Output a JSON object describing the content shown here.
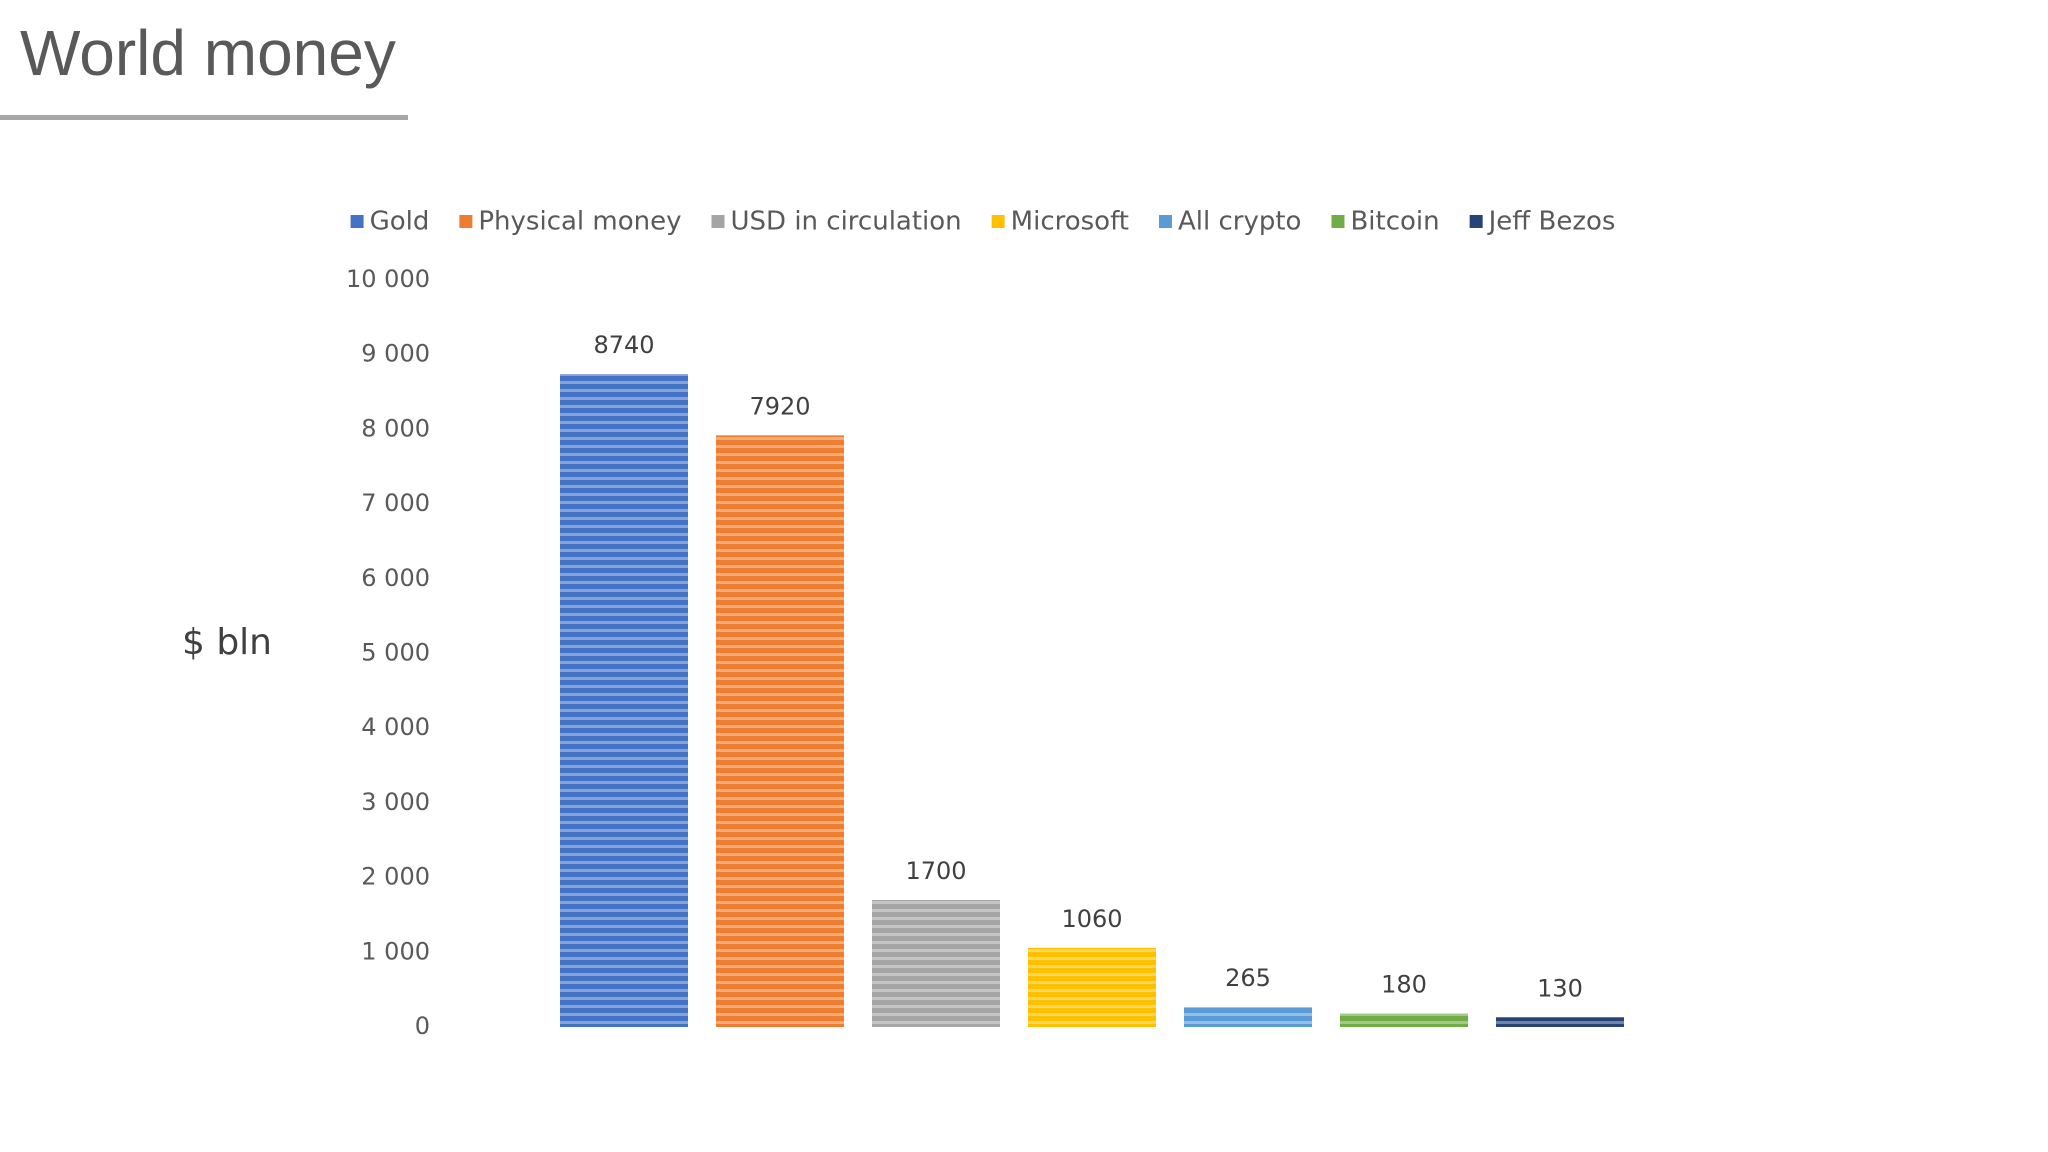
{
  "chart_data": {
    "type": "bar",
    "title": "World money",
    "y_label": "$ bln",
    "series": [
      {
        "name": "Gold",
        "color": "#4472c4",
        "values": [
          8740
        ]
      },
      {
        "name": "Physical money",
        "color": "#ed7d31",
        "values": [
          7920
        ]
      },
      {
        "name": "USD in circulation",
        "color": "#a5a5a5",
        "values": [
          1700
        ]
      },
      {
        "name": "Microsoft",
        "color": "#ffc000",
        "values": [
          1060
        ]
      },
      {
        "name": "All crypto",
        "color": "#5b9bd5",
        "values": [
          265
        ]
      },
      {
        "name": "Bitcoin",
        "color": "#70ad47",
        "values": [
          180
        ]
      },
      {
        "name": "Jeff Bezos",
        "color": "#264478",
        "values": [
          130
        ]
      }
    ],
    "ylim": [
      0,
      10000
    ],
    "yticks": [
      0,
      {
        "value": 1000,
        "label": "1 000"
      },
      {
        "value": 2000,
        "label": "2 000"
      },
      {
        "value": 3000,
        "label": "3 000"
      },
      {
        "value": 4000,
        "label": "4 000"
      },
      {
        "value": 5000,
        "label": "5 000"
      },
      {
        "value": 6000,
        "label": "6 000"
      },
      {
        "value": 7000,
        "label": "7 000"
      },
      {
        "value": 8000,
        "label": "8 000"
      },
      {
        "value": 9000,
        "label": "9 000"
      },
      {
        "value": 10000,
        "label": "10 000"
      }
    ],
    "grid": false,
    "legend": "top"
  }
}
